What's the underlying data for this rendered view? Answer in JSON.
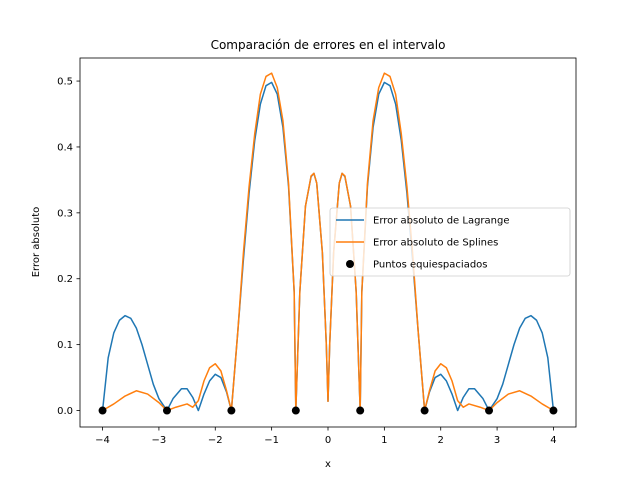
{
  "chart_data": {
    "type": "line",
    "title": "Comparación de errores en el intervalo",
    "xlabel": "x",
    "ylabel": "Error absoluto",
    "xlim": [
      -4.4,
      4.4
    ],
    "ylim": [
      -0.025,
      0.535
    ],
    "xticks": [
      -4,
      -3,
      -2,
      -1,
      0,
      1,
      2,
      3,
      4
    ],
    "xtick_labels": [
      "−4",
      "−3",
      "−2",
      "−1",
      "0",
      "1",
      "2",
      "3",
      "4"
    ],
    "yticks": [
      0.0,
      0.1,
      0.2,
      0.3,
      0.4,
      0.5
    ],
    "ytick_labels": [
      "0.0",
      "0.1",
      "0.2",
      "0.3",
      "0.4",
      "0.5"
    ],
    "grid": false,
    "legend_position": "center-right",
    "series": [
      {
        "name": "Error absoluto de Lagrange",
        "kind": "line",
        "color": "#1f77b4",
        "points": [
          [
            -4.0,
            0.0
          ],
          [
            -3.9,
            0.08
          ],
          [
            -3.8,
            0.118
          ],
          [
            -3.7,
            0.137
          ],
          [
            -3.6,
            0.144
          ],
          [
            -3.5,
            0.14
          ],
          [
            -3.4,
            0.125
          ],
          [
            -3.3,
            0.1
          ],
          [
            -3.2,
            0.07
          ],
          [
            -3.1,
            0.04
          ],
          [
            -3.0,
            0.018
          ],
          [
            -2.857,
            0.0
          ],
          [
            -2.75,
            0.018
          ],
          [
            -2.6,
            0.033
          ],
          [
            -2.5,
            0.033
          ],
          [
            -2.4,
            0.02
          ],
          [
            -2.3,
            0.0
          ],
          [
            -2.2,
            0.025
          ],
          [
            -2.1,
            0.045
          ],
          [
            -2.0,
            0.055
          ],
          [
            -1.9,
            0.05
          ],
          [
            -1.8,
            0.028
          ],
          [
            -1.714,
            0.0
          ],
          [
            -1.6,
            0.12
          ],
          [
            -1.5,
            0.23
          ],
          [
            -1.4,
            0.33
          ],
          [
            -1.3,
            0.41
          ],
          [
            -1.2,
            0.465
          ],
          [
            -1.1,
            0.493
          ],
          [
            -1.0,
            0.498
          ],
          [
            -0.9,
            0.48
          ],
          [
            -0.8,
            0.43
          ],
          [
            -0.7,
            0.34
          ],
          [
            -0.6,
            0.18
          ],
          [
            -0.571,
            0.0
          ],
          [
            -0.5,
            0.18
          ],
          [
            -0.4,
            0.31
          ],
          [
            -0.3,
            0.355
          ],
          [
            -0.25,
            0.36
          ],
          [
            -0.2,
            0.345
          ],
          [
            -0.1,
            0.24
          ],
          [
            -0.03,
            0.1
          ],
          [
            0.0,
            0.014
          ],
          [
            0.03,
            0.1
          ],
          [
            0.1,
            0.24
          ],
          [
            0.2,
            0.345
          ],
          [
            0.25,
            0.36
          ],
          [
            0.3,
            0.355
          ],
          [
            0.4,
            0.31
          ],
          [
            0.5,
            0.18
          ],
          [
            0.571,
            0.0
          ],
          [
            0.6,
            0.18
          ],
          [
            0.7,
            0.34
          ],
          [
            0.8,
            0.43
          ],
          [
            0.9,
            0.48
          ],
          [
            1.0,
            0.498
          ],
          [
            1.1,
            0.493
          ],
          [
            1.2,
            0.465
          ],
          [
            1.3,
            0.41
          ],
          [
            1.4,
            0.33
          ],
          [
            1.5,
            0.23
          ],
          [
            1.6,
            0.12
          ],
          [
            1.714,
            0.0
          ],
          [
            1.8,
            0.028
          ],
          [
            1.9,
            0.05
          ],
          [
            2.0,
            0.055
          ],
          [
            2.1,
            0.045
          ],
          [
            2.2,
            0.025
          ],
          [
            2.3,
            0.0
          ],
          [
            2.4,
            0.02
          ],
          [
            2.5,
            0.033
          ],
          [
            2.6,
            0.033
          ],
          [
            2.75,
            0.018
          ],
          [
            2.857,
            0.0
          ],
          [
            3.0,
            0.018
          ],
          [
            3.1,
            0.04
          ],
          [
            3.2,
            0.07
          ],
          [
            3.3,
            0.1
          ],
          [
            3.4,
            0.125
          ],
          [
            3.5,
            0.14
          ],
          [
            3.6,
            0.144
          ],
          [
            3.7,
            0.137
          ],
          [
            3.8,
            0.118
          ],
          [
            3.9,
            0.08
          ],
          [
            4.0,
            0.0
          ]
        ]
      },
      {
        "name": "Error absoluto de Splines",
        "kind": "line",
        "color": "#ff7f0e",
        "points": [
          [
            -4.0,
            0.0
          ],
          [
            -3.8,
            0.01
          ],
          [
            -3.6,
            0.022
          ],
          [
            -3.4,
            0.03
          ],
          [
            -3.2,
            0.025
          ],
          [
            -3.0,
            0.012
          ],
          [
            -2.857,
            0.0
          ],
          [
            -2.7,
            0.005
          ],
          [
            -2.5,
            0.01
          ],
          [
            -2.4,
            0.005
          ],
          [
            -2.3,
            0.015
          ],
          [
            -2.2,
            0.045
          ],
          [
            -2.1,
            0.065
          ],
          [
            -2.0,
            0.071
          ],
          [
            -1.9,
            0.06
          ],
          [
            -1.8,
            0.03
          ],
          [
            -1.714,
            0.0
          ],
          [
            -1.6,
            0.12
          ],
          [
            -1.5,
            0.24
          ],
          [
            -1.4,
            0.34
          ],
          [
            -1.3,
            0.42
          ],
          [
            -1.2,
            0.48
          ],
          [
            -1.1,
            0.507
          ],
          [
            -1.0,
            0.512
          ],
          [
            -0.9,
            0.49
          ],
          [
            -0.8,
            0.44
          ],
          [
            -0.7,
            0.345
          ],
          [
            -0.6,
            0.18
          ],
          [
            -0.571,
            0.0
          ],
          [
            -0.5,
            0.18
          ],
          [
            -0.4,
            0.31
          ],
          [
            -0.3,
            0.356
          ],
          [
            -0.25,
            0.36
          ],
          [
            -0.2,
            0.345
          ],
          [
            -0.1,
            0.24
          ],
          [
            -0.03,
            0.1
          ],
          [
            0.0,
            0.014
          ],
          [
            0.03,
            0.1
          ],
          [
            0.1,
            0.24
          ],
          [
            0.2,
            0.345
          ],
          [
            0.25,
            0.36
          ],
          [
            0.3,
            0.356
          ],
          [
            0.4,
            0.31
          ],
          [
            0.5,
            0.18
          ],
          [
            0.571,
            0.0
          ],
          [
            0.6,
            0.18
          ],
          [
            0.7,
            0.345
          ],
          [
            0.8,
            0.44
          ],
          [
            0.9,
            0.49
          ],
          [
            1.0,
            0.512
          ],
          [
            1.1,
            0.507
          ],
          [
            1.2,
            0.48
          ],
          [
            1.3,
            0.42
          ],
          [
            1.4,
            0.34
          ],
          [
            1.5,
            0.24
          ],
          [
            1.6,
            0.12
          ],
          [
            1.714,
            0.0
          ],
          [
            1.8,
            0.03
          ],
          [
            1.9,
            0.06
          ],
          [
            2.0,
            0.071
          ],
          [
            2.1,
            0.065
          ],
          [
            2.2,
            0.045
          ],
          [
            2.3,
            0.015
          ],
          [
            2.4,
            0.005
          ],
          [
            2.5,
            0.01
          ],
          [
            2.7,
            0.005
          ],
          [
            2.857,
            0.0
          ],
          [
            3.0,
            0.012
          ],
          [
            3.2,
            0.025
          ],
          [
            3.4,
            0.03
          ],
          [
            3.6,
            0.022
          ],
          [
            3.8,
            0.01
          ],
          [
            4.0,
            0.0
          ]
        ]
      },
      {
        "name": "Puntos equiespaciados",
        "kind": "scatter",
        "color": "#000000",
        "x": [
          -4.0,
          -2.857,
          -1.714,
          -0.571,
          0.571,
          1.714,
          2.857,
          4.0
        ],
        "y": [
          0,
          0,
          0,
          0,
          0,
          0,
          0,
          0
        ]
      }
    ]
  }
}
